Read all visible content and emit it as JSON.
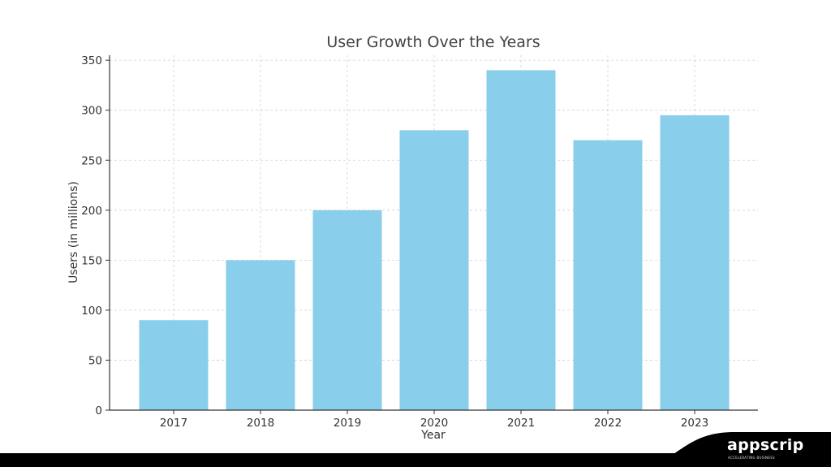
{
  "chart_data": {
    "type": "bar",
    "title": "User Growth Over the Years",
    "xlabel": "Year",
    "ylabel": "Users (in millions)",
    "categories": [
      "2017",
      "2018",
      "2019",
      "2020",
      "2021",
      "2022",
      "2023"
    ],
    "values": [
      90,
      150,
      200,
      280,
      340,
      270,
      295
    ],
    "ylim": [
      0,
      355
    ],
    "yticks": [
      0,
      50,
      100,
      150,
      200,
      250,
      300,
      350
    ],
    "grid": true,
    "bar_color": "#89ceea"
  },
  "branding": {
    "name": "appscrip",
    "tagline": "ACCELERATING BUSINESS"
  }
}
